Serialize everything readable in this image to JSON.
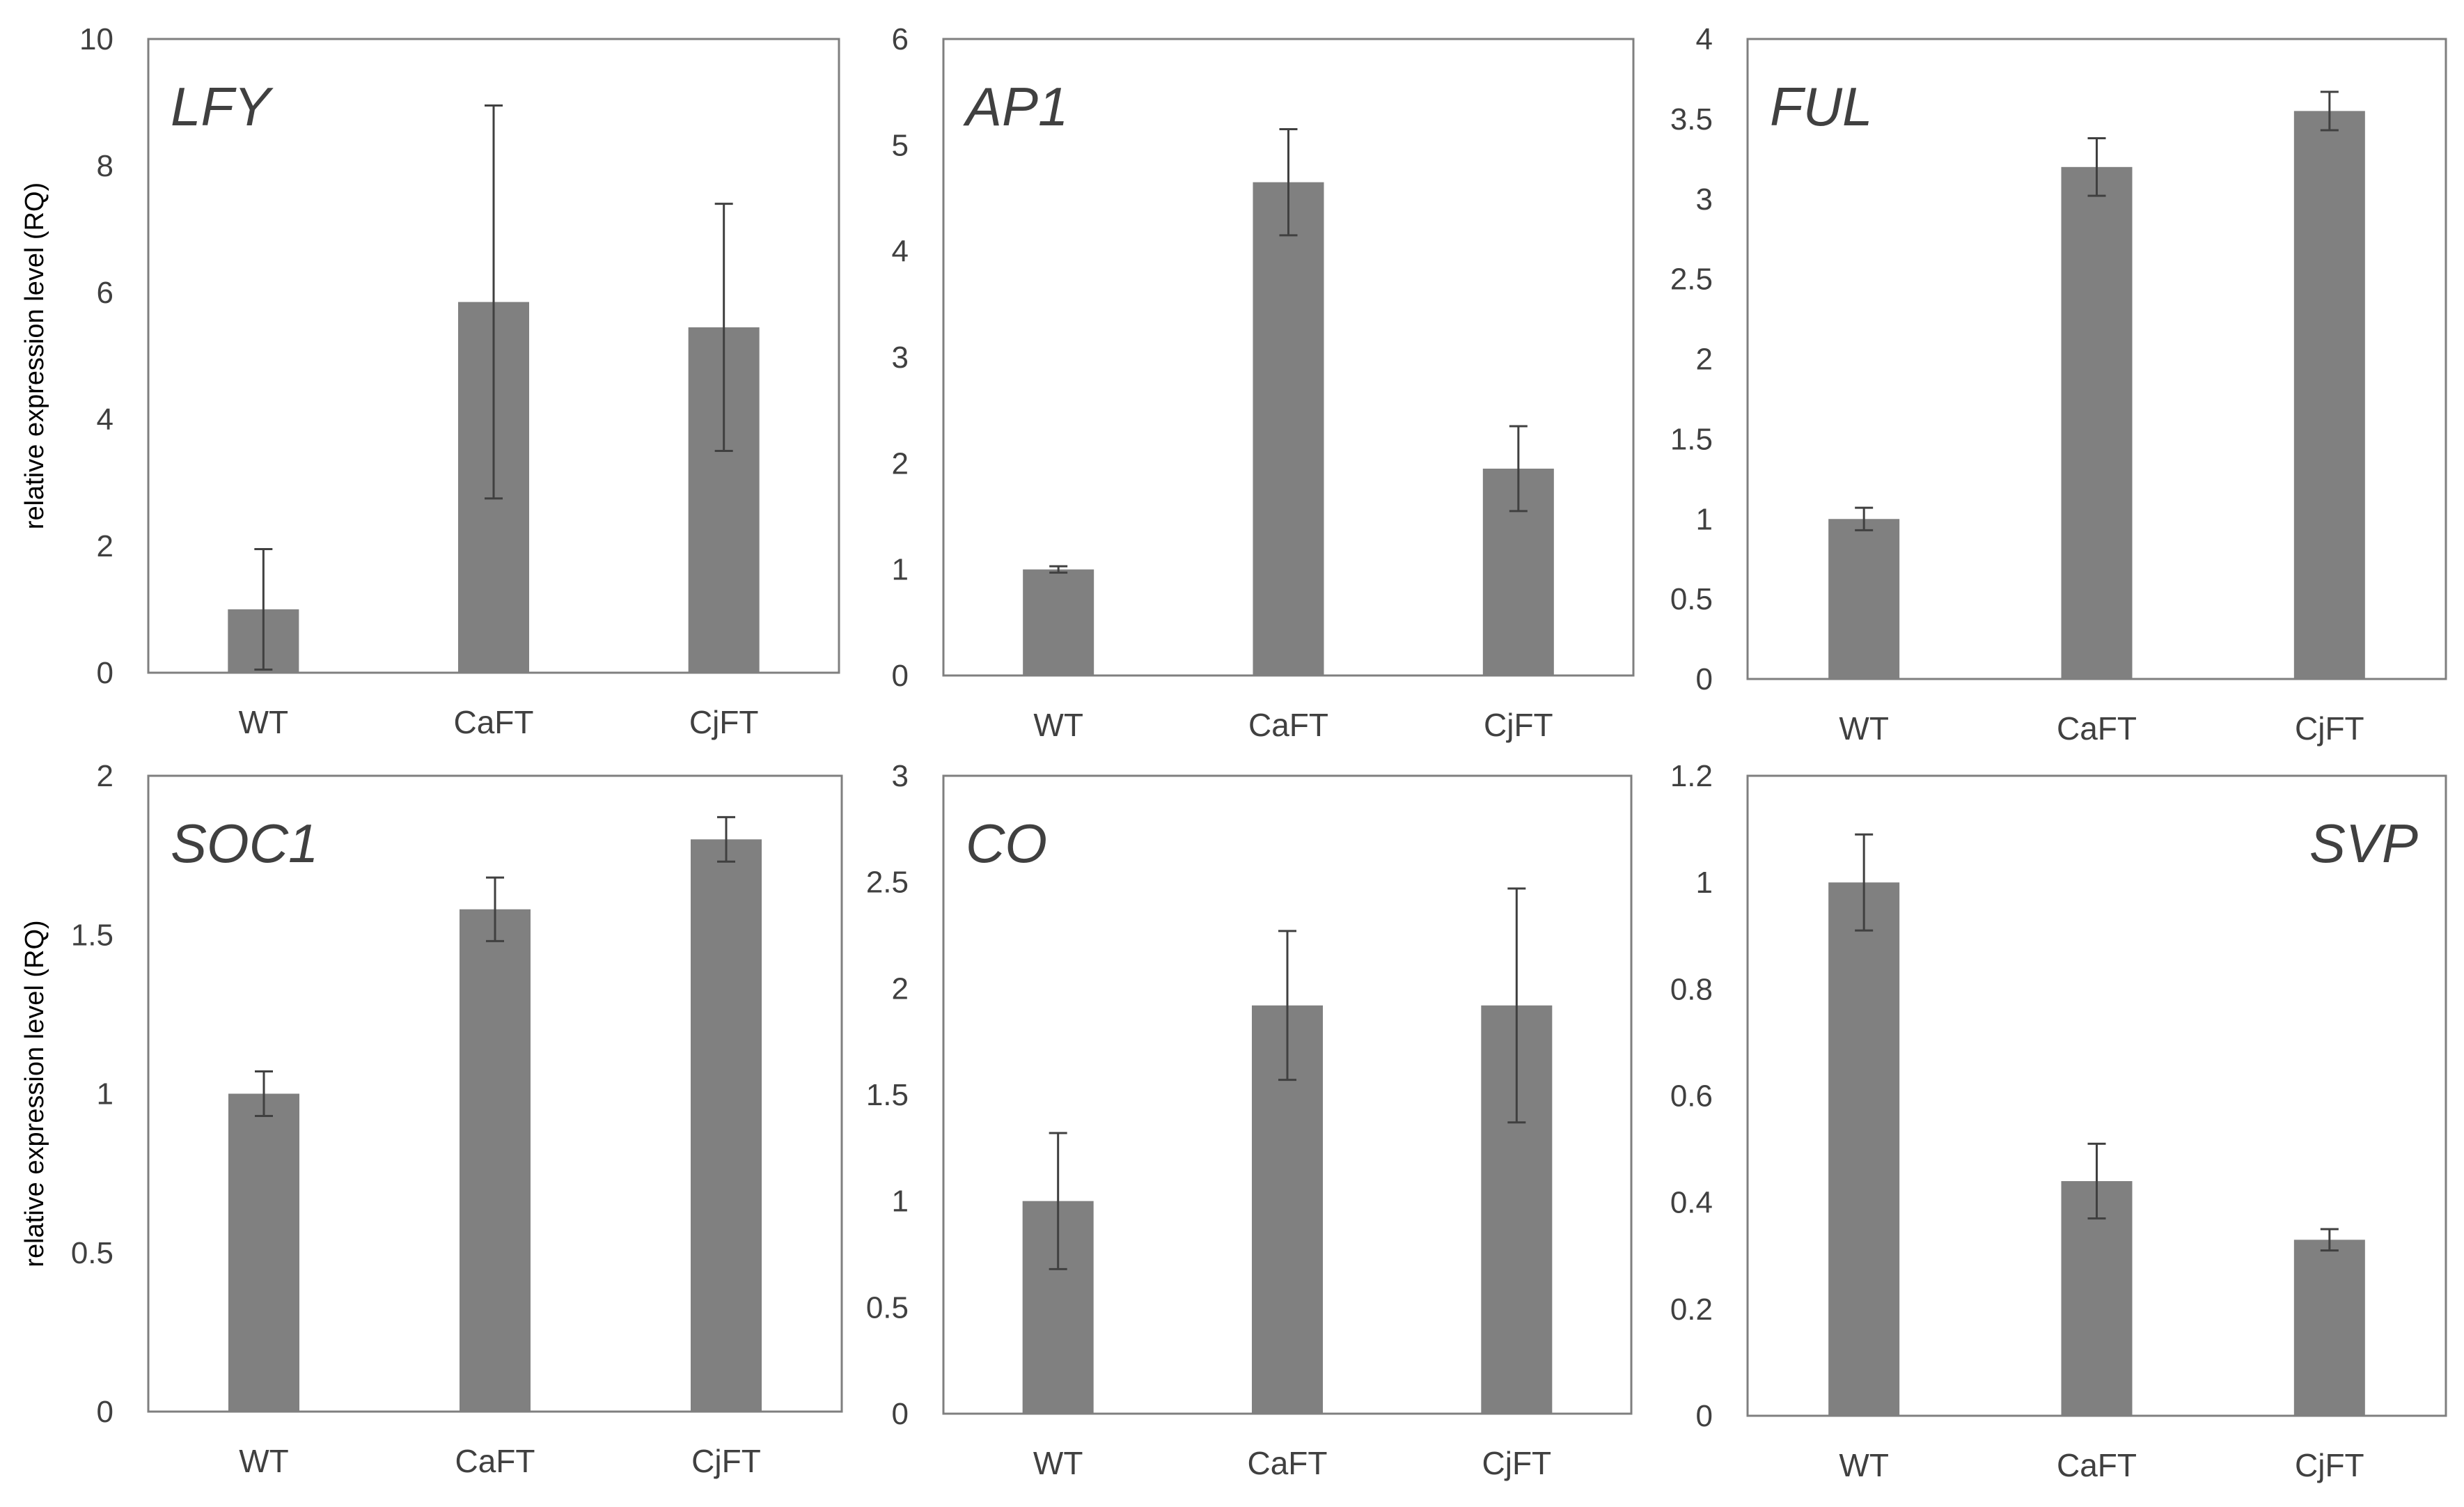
{
  "figure": {
    "colors": {
      "bar": "#808080",
      "error_bar": "#404040",
      "frame": "#7f7f7f",
      "text": "#404040"
    }
  },
  "chart_data": [
    {
      "type": "bar",
      "title": "LFY",
      "title_position": "top-left",
      "ylabel": "relative  expression  level (RQ)",
      "categories": [
        "WT",
        "CaFT",
        "CjFT"
      ],
      "values": [
        1.0,
        5.85,
        5.45
      ],
      "errors": [
        0.95,
        3.1,
        1.95
      ],
      "ylim": [
        0,
        10
      ],
      "ticks": [
        0,
        2,
        4,
        6,
        8,
        10
      ],
      "tick_labels": [
        "0",
        "2",
        "4",
        "6",
        "8",
        "10"
      ]
    },
    {
      "type": "bar",
      "title": "AP1",
      "title_position": "top-left",
      "ylabel": "",
      "categories": [
        "WT",
        "CaFT",
        "CjFT"
      ],
      "values": [
        1.0,
        4.65,
        1.95
      ],
      "errors": [
        0.03,
        0.5,
        0.4
      ],
      "ylim": [
        0,
        6
      ],
      "ticks": [
        0,
        1,
        2,
        3,
        4,
        5,
        6
      ],
      "tick_labels": [
        "0",
        "1",
        "2",
        "3",
        "4",
        "5",
        "6"
      ]
    },
    {
      "type": "bar",
      "title": "FUL",
      "title_position": "top-left",
      "ylabel": "",
      "categories": [
        "WT",
        "CaFT",
        "CjFT"
      ],
      "values": [
        1.0,
        3.2,
        3.55
      ],
      "errors": [
        0.07,
        0.18,
        0.12
      ],
      "ylim": [
        0,
        4
      ],
      "ticks": [
        0,
        0.5,
        1,
        1.5,
        2,
        2.5,
        3,
        3.5,
        4
      ],
      "tick_labels": [
        "0",
        "0.5",
        "1",
        "1.5",
        "2",
        "2.5",
        "3",
        "3.5",
        "4"
      ]
    },
    {
      "type": "bar",
      "title": "SOC1",
      "title_position": "top-left",
      "ylabel": "relative  expression  level (RQ)",
      "categories": [
        "WT",
        "CaFT",
        "CjFT"
      ],
      "values": [
        1.0,
        1.58,
        1.8
      ],
      "errors": [
        0.07,
        0.1,
        0.07
      ],
      "ylim": [
        0,
        2
      ],
      "ticks": [
        0,
        0.5,
        1,
        1.5,
        2
      ],
      "tick_labels": [
        "0",
        "0.5",
        "1",
        "1.5",
        "2"
      ]
    },
    {
      "type": "bar",
      "title": "CO",
      "title_position": "top-left",
      "ylabel": "",
      "categories": [
        "WT",
        "CaFT",
        "CjFT"
      ],
      "values": [
        1.0,
        1.92,
        1.92
      ],
      "errors": [
        0.32,
        0.35,
        0.55
      ],
      "ylim": [
        0,
        3
      ],
      "ticks": [
        0,
        0.5,
        1,
        1.5,
        2,
        2.5,
        3
      ],
      "tick_labels": [
        "0",
        "0.5",
        "1",
        "1.5",
        "2",
        "2.5",
        "3"
      ]
    },
    {
      "type": "bar",
      "title": "SVP",
      "title_position": "top-right",
      "ylabel": "",
      "categories": [
        "WT",
        "CaFT",
        "CjFT"
      ],
      "values": [
        1.0,
        0.44,
        0.33
      ],
      "errors": [
        0.09,
        0.07,
        0.02
      ],
      "ylim": [
        0,
        1.2
      ],
      "ticks": [
        0,
        0.2,
        0.4,
        0.6,
        0.8,
        1,
        1.2
      ],
      "tick_labels": [
        "0",
        "0.2",
        "0.4",
        "0.6",
        "0.8",
        "1",
        "1.2"
      ]
    }
  ]
}
